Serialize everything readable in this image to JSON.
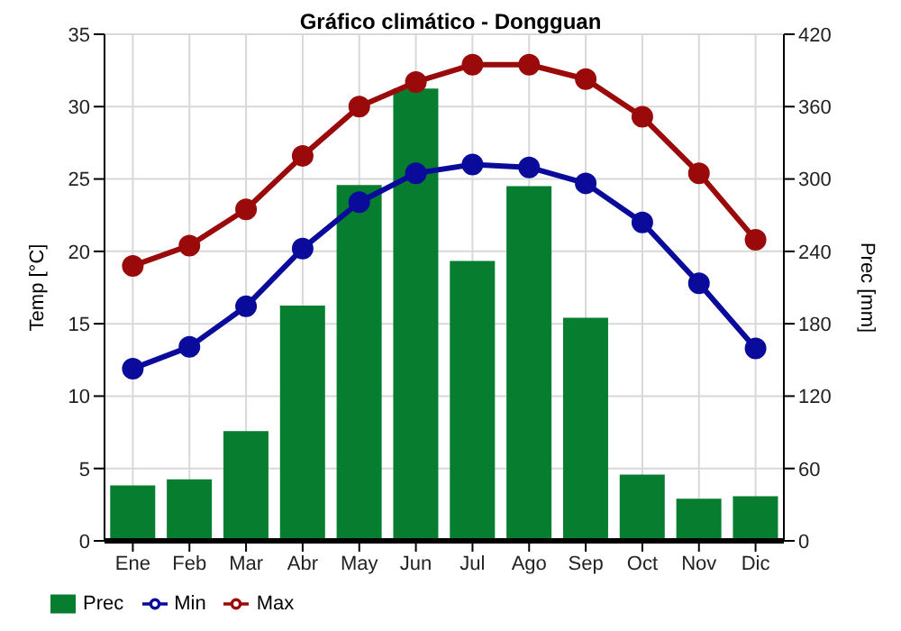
{
  "chart_data": {
    "type": "bar",
    "title": "Gráfico climático - Dongguan",
    "ylabel": "Temp [°C]",
    "y2label": "Prec [mm]",
    "categories": [
      "Ene",
      "Feb",
      "Mar",
      "Abr",
      "May",
      "Jun",
      "Jul",
      "Ago",
      "Sep",
      "Oct",
      "Nov",
      "Dic"
    ],
    "series": [
      {
        "name": "Prec",
        "axis": "y2",
        "color": "#067d2f",
        "values": [
          46,
          51,
          91,
          195,
          295,
          375,
          232,
          294,
          185,
          55,
          35,
          37
        ]
      },
      {
        "name": "Min",
        "type": "line",
        "color": "#0a0a9b",
        "values": [
          11.9,
          13.4,
          16.2,
          20.2,
          23.4,
          25.4,
          26.0,
          25.8,
          24.7,
          22.0,
          17.8,
          13.3
        ]
      },
      {
        "name": "Max",
        "type": "line",
        "color": "#9b0a0a",
        "values": [
          19.0,
          20.4,
          22.9,
          26.6,
          30.0,
          31.7,
          32.9,
          32.9,
          31.9,
          29.3,
          25.4,
          20.8
        ]
      }
    ],
    "ylim": [
      0,
      35
    ],
    "yticks": [
      0,
      5,
      10,
      15,
      20,
      25,
      30,
      35
    ],
    "y2lim": [
      0,
      420
    ],
    "y2ticks": [
      0,
      60,
      120,
      180,
      240,
      300,
      360,
      420
    ],
    "grid": true,
    "legend": "bottom left",
    "marker": "circle"
  }
}
